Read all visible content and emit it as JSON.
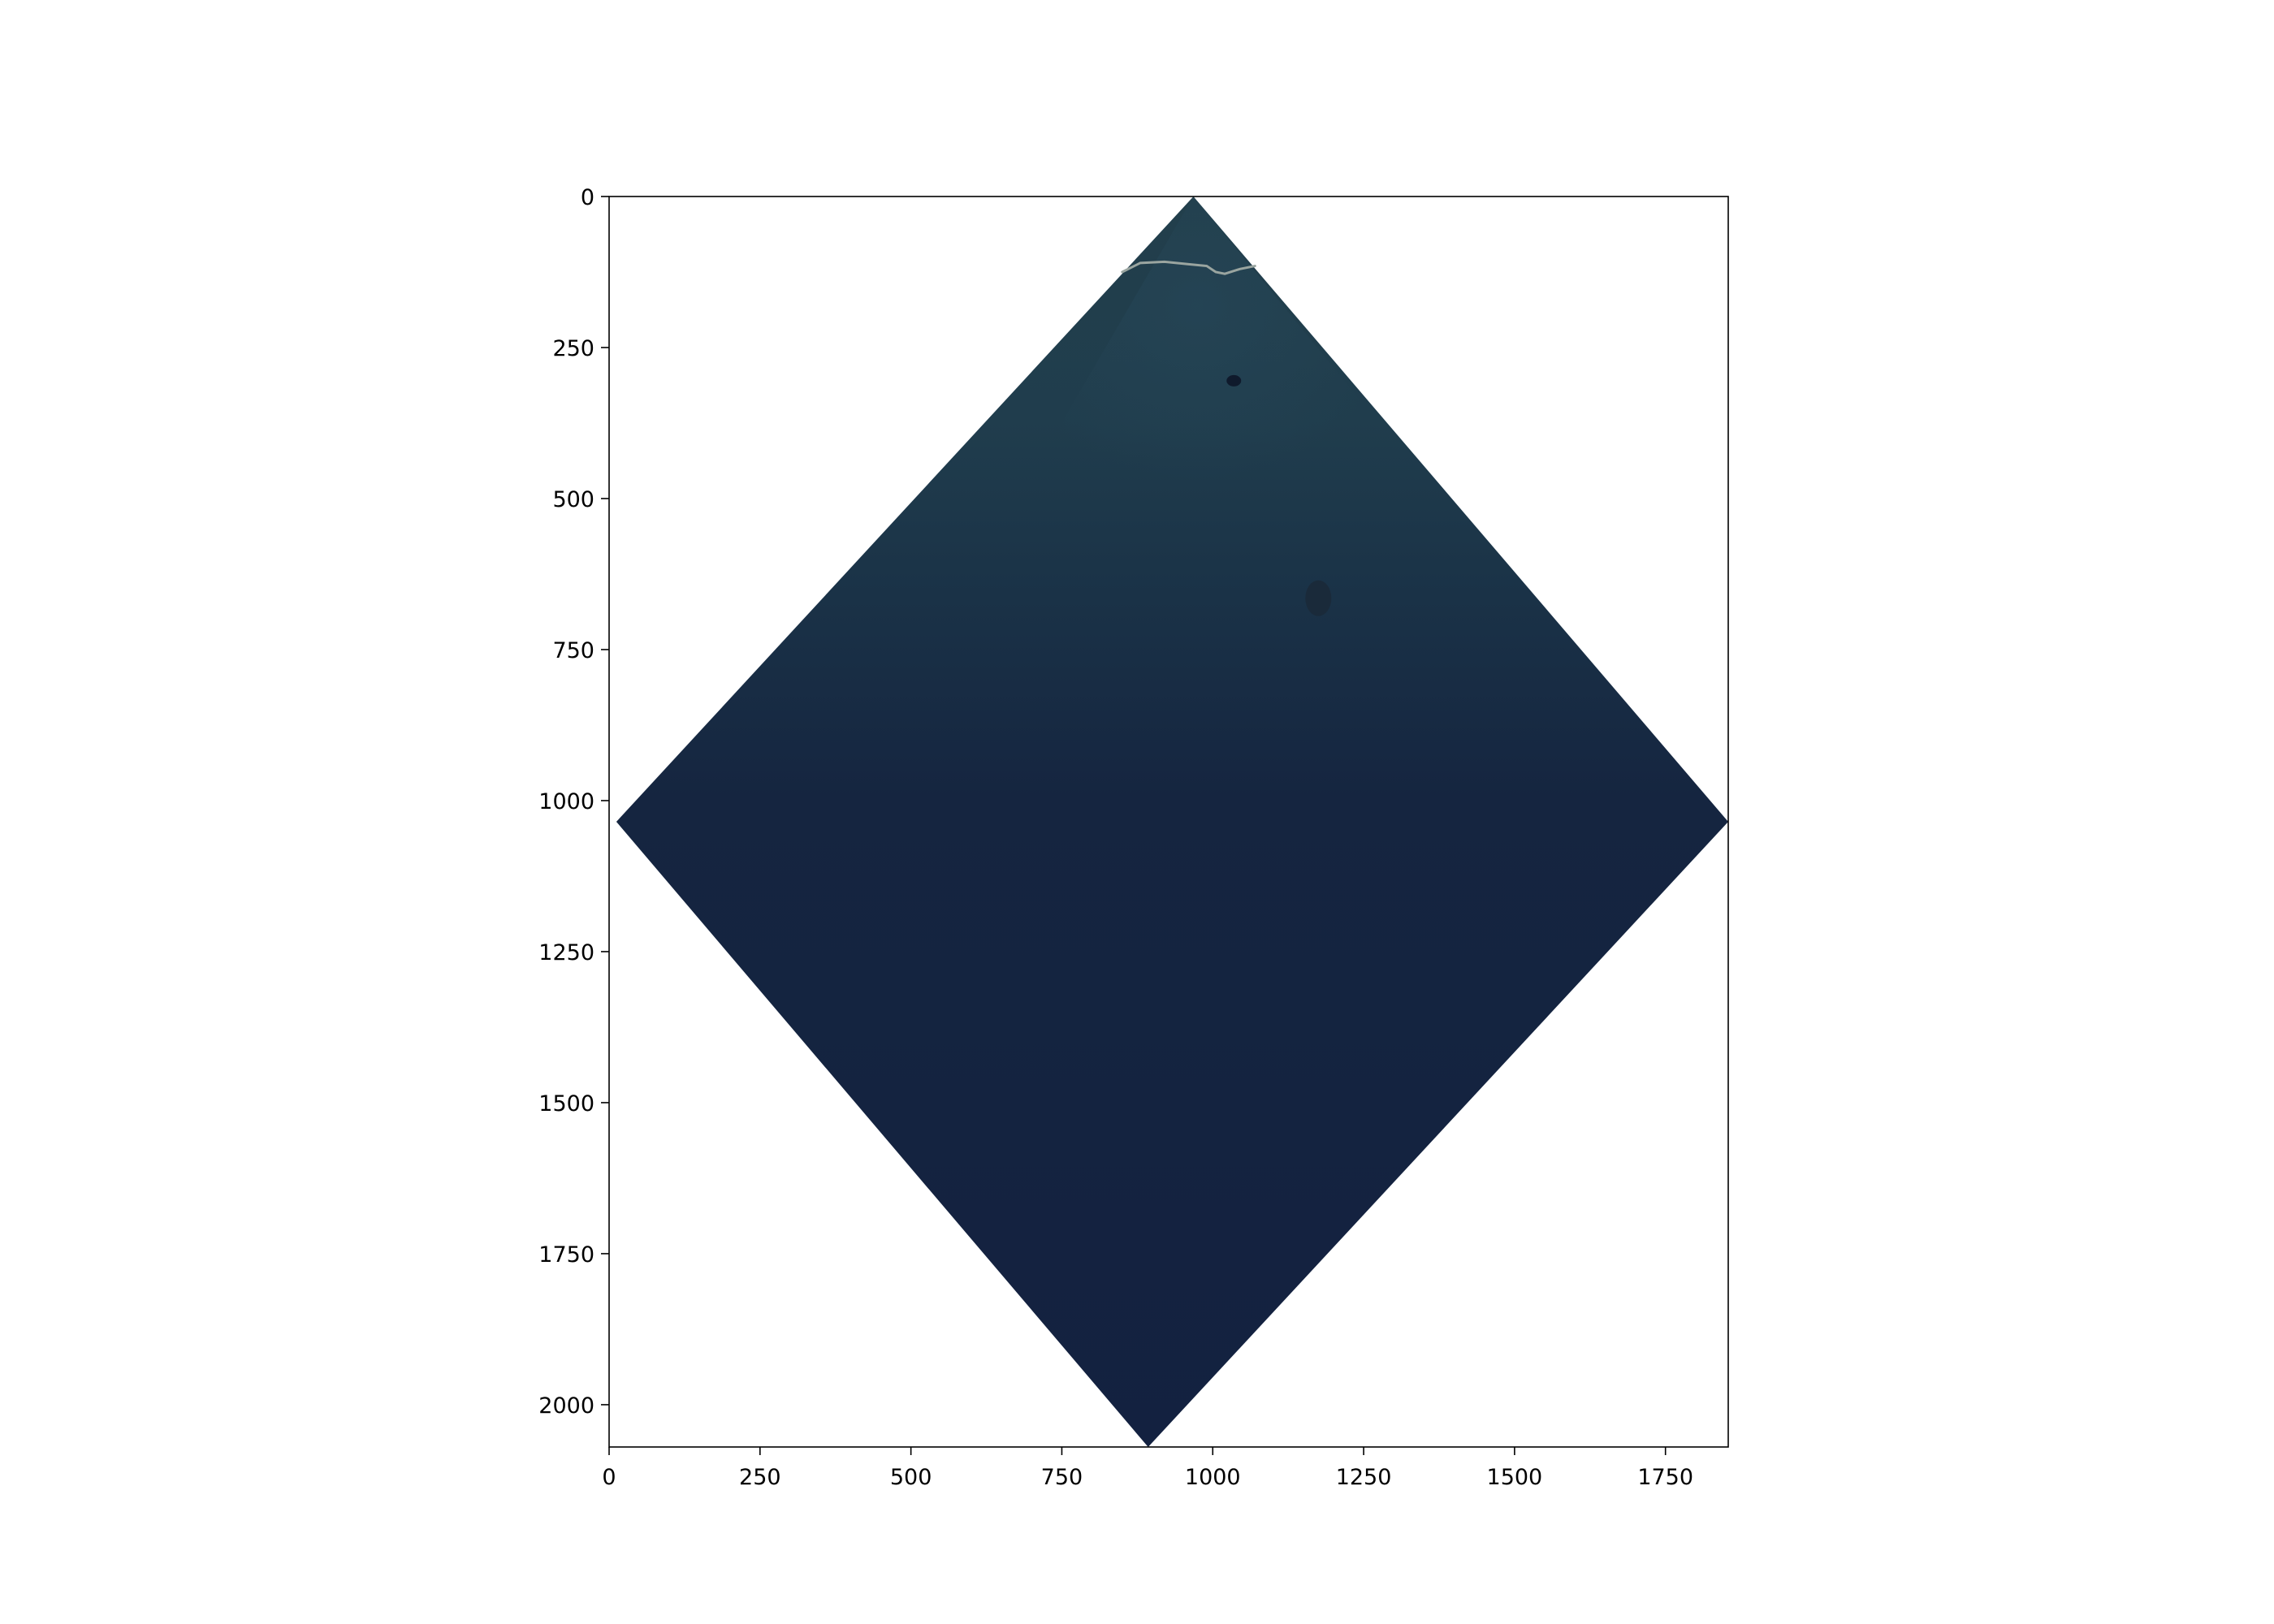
{
  "image": {
    "description_free": true,
    "x_range": [
      0,
      1854
    ],
    "y_range": [
      2070,
      0
    ],
    "footprint_corners": [
      {
        "x": 968,
        "y": 0
      },
      {
        "x": 1854,
        "y": 1035
      },
      {
        "x": 893,
        "y": 2070
      },
      {
        "x": 12,
        "y": 1035
      }
    ],
    "colors": {
      "ocean_deep": "#14213f",
      "ocean_shallow": "#1f3f4f",
      "coast": "#9aa5a0",
      "background": "#ffffff"
    }
  },
  "x_ticks": [
    {
      "value": 0,
      "label": "0"
    },
    {
      "value": 250,
      "label": "250"
    },
    {
      "value": 500,
      "label": "500"
    },
    {
      "value": 750,
      "label": "750"
    },
    {
      "value": 1000,
      "label": "1000"
    },
    {
      "value": 1250,
      "label": "1250"
    },
    {
      "value": 1500,
      "label": "1500"
    },
    {
      "value": 1750,
      "label": "1750"
    }
  ],
  "y_ticks": [
    {
      "value": 0,
      "label": "0"
    },
    {
      "value": 250,
      "label": "250"
    },
    {
      "value": 500,
      "label": "500"
    },
    {
      "value": 750,
      "label": "750"
    },
    {
      "value": 1000,
      "label": "1000"
    },
    {
      "value": 1250,
      "label": "1250"
    },
    {
      "value": 1500,
      "label": "1500"
    },
    {
      "value": 1750,
      "label": "1750"
    },
    {
      "value": 2000,
      "label": "2000"
    }
  ]
}
